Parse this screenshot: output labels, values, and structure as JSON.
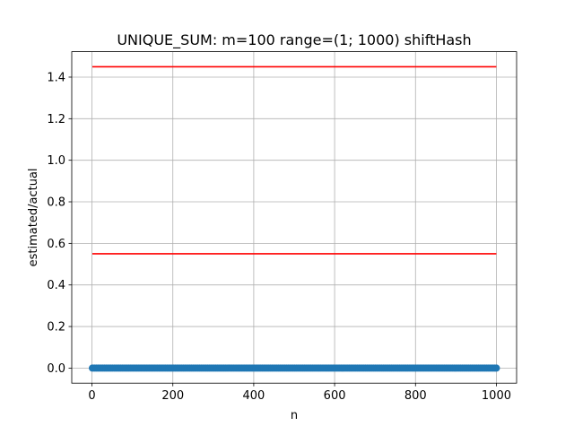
{
  "chart_data": {
    "type": "scatter",
    "title": "UNIQUE_SUM: m=100 range=(1; 1000) shiftHash",
    "xlabel": "n",
    "ylabel": "estimated/actual",
    "xlim": [
      -50,
      1050
    ],
    "ylim": [
      -0.0725,
      1.5225
    ],
    "x_ticks": [
      0,
      200,
      400,
      600,
      800,
      1000
    ],
    "y_ticks": [
      0.0,
      0.2,
      0.4,
      0.6,
      0.8,
      1.0,
      1.2,
      1.4
    ],
    "y_tick_labels": [
      "0.0",
      "0.2",
      "0.4",
      "0.6",
      "0.8",
      "1.0",
      "1.2",
      "1.4"
    ],
    "grid": true,
    "legend": "none",
    "series": [
      {
        "kind": "scatter",
        "color": "#1f77b4",
        "x_start": 1,
        "x_end": 1000,
        "y": 0.0
      },
      {
        "kind": "hline",
        "color": "#ff0000",
        "x": [
          1,
          1000
        ],
        "y": 1.45
      },
      {
        "kind": "hline",
        "color": "#ff0000",
        "x": [
          1,
          1000
        ],
        "y": 0.55
      }
    ]
  }
}
